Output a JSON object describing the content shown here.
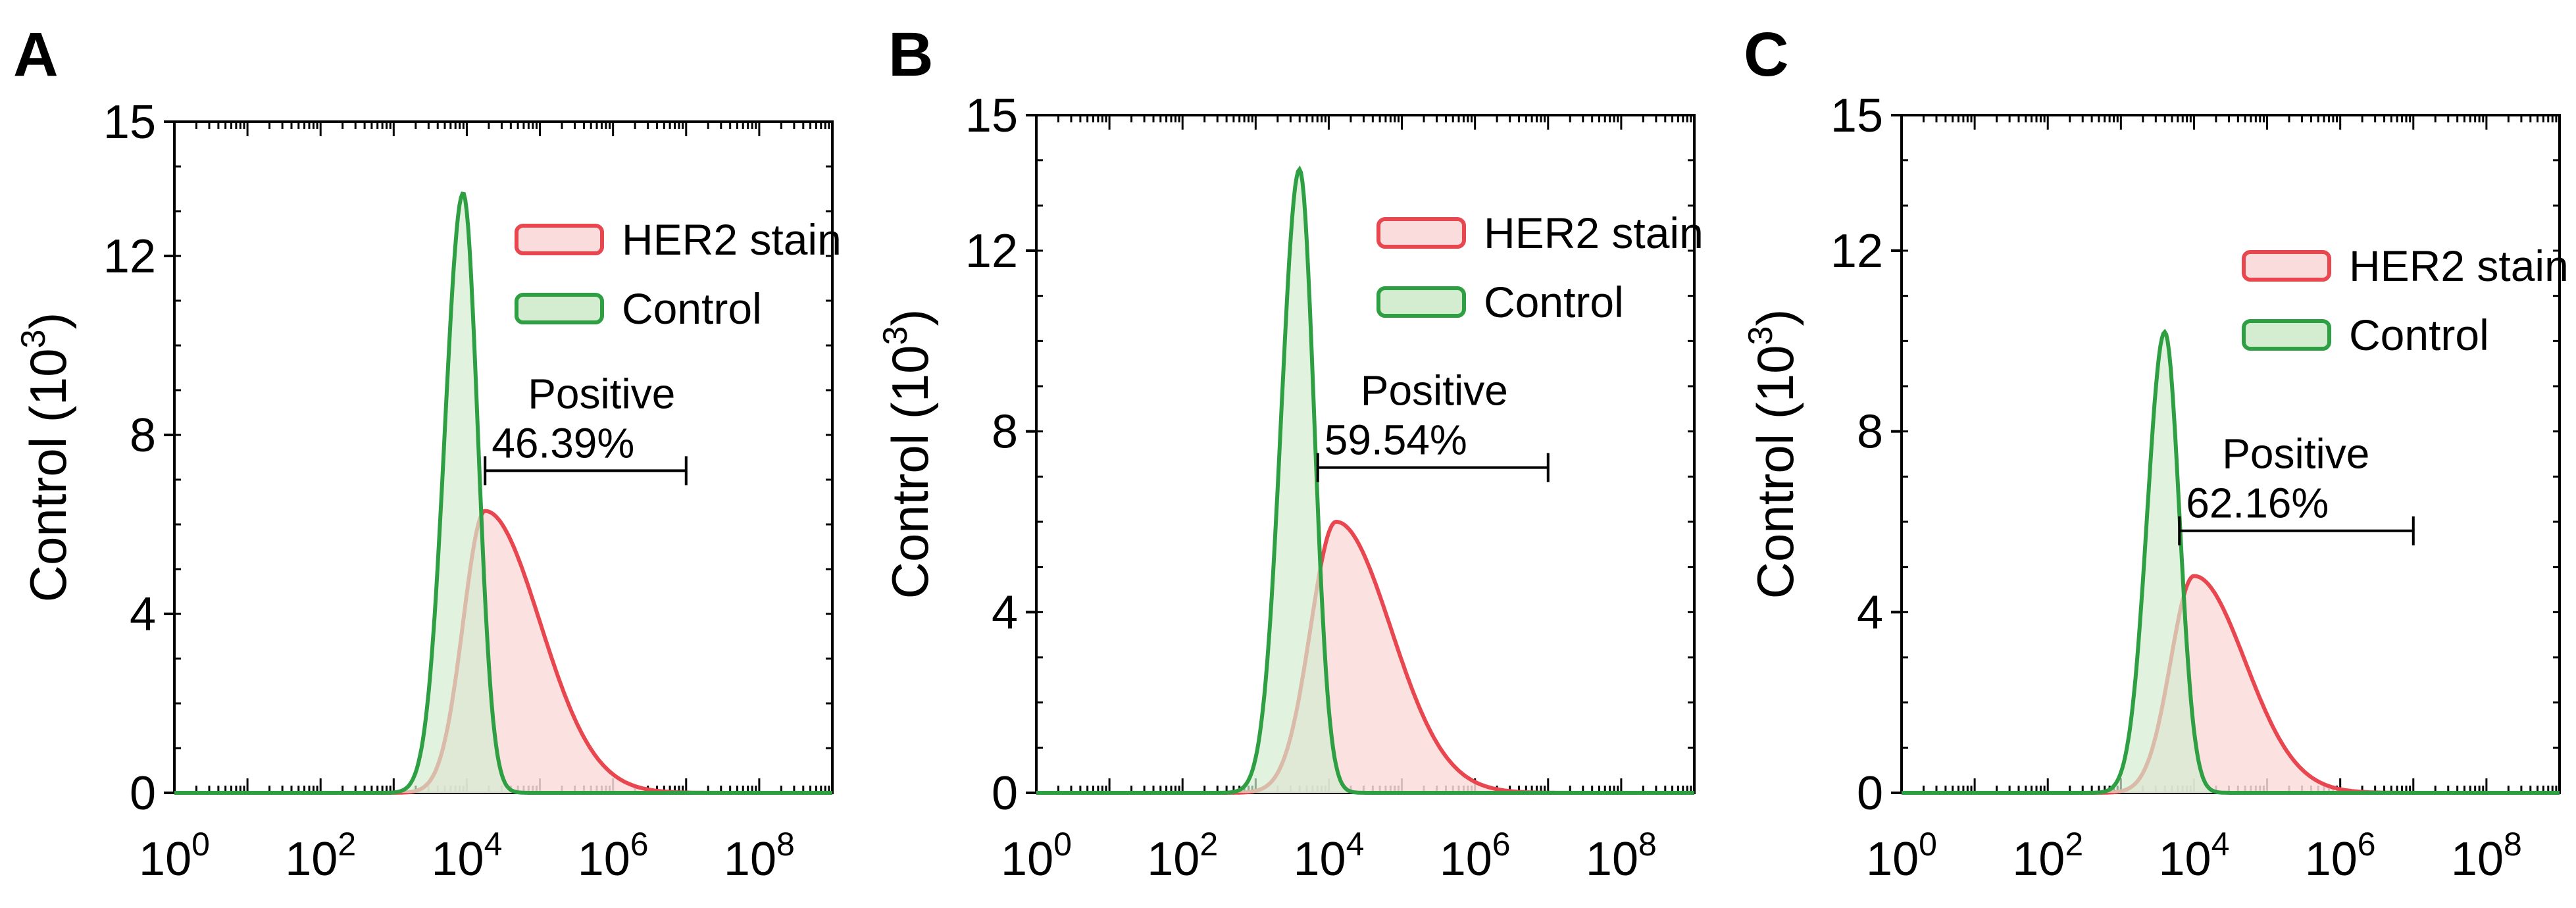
{
  "chart_data": [
    {
      "type": "histogram",
      "panel": "A",
      "ylabel": "Control (10",
      "ylabel_sup": "3",
      "ylabel_close": ")",
      "xlabel": "",
      "xscale": "log10",
      "xlim": [
        0,
        9
      ],
      "ylim": [
        0,
        15
      ],
      "x_ticks": [
        {
          "base": "10",
          "exp": "0",
          "value": 0
        },
        {
          "base": "10",
          "exp": "2",
          "value": 2
        },
        {
          "base": "10",
          "exp": "4",
          "value": 4
        },
        {
          "base": "10",
          "exp": "6",
          "value": 6
        },
        {
          "base": "10",
          "exp": "8",
          "value": 8
        }
      ],
      "y_ticks": [
        {
          "label": "0",
          "value": 0
        },
        {
          "label": "4",
          "value": 4
        },
        {
          "label": "8",
          "value": 8
        },
        {
          "label": "12",
          "value": 12
        },
        {
          "label": "15",
          "value": 15
        }
      ],
      "legend_position": "top-right",
      "series": [
        {
          "name": "HER2 stain",
          "color": "#e8474f",
          "fill": "#fbdcdc",
          "peak_log10": 4.25,
          "peak_count": 6.3,
          "sigma_left": 0.3,
          "sigma_right": 0.75
        },
        {
          "name": "Control",
          "color": "#2ea043",
          "fill": "#d4ecd0",
          "peak_log10": 3.95,
          "peak_count": 13.4,
          "sigma_left": 0.25,
          "sigma_right": 0.2
        }
      ],
      "gate": {
        "label": "Positive",
        "value_text": "46.39%",
        "x_start": 4.25,
        "x_end": 7.0,
        "y": 7.2
      }
    },
    {
      "type": "histogram",
      "panel": "B",
      "ylabel": "Control (10",
      "ylabel_sup": "3",
      "ylabel_close": ")",
      "xlabel": "",
      "xscale": "log10",
      "xlim": [
        0,
        9
      ],
      "ylim": [
        0,
        15
      ],
      "x_ticks": [
        {
          "base": "10",
          "exp": "0",
          "value": 0
        },
        {
          "base": "10",
          "exp": "2",
          "value": 2
        },
        {
          "base": "10",
          "exp": "4",
          "value": 4
        },
        {
          "base": "10",
          "exp": "6",
          "value": 6
        },
        {
          "base": "10",
          "exp": "8",
          "value": 8
        }
      ],
      "y_ticks": [
        {
          "label": "0",
          "value": 0
        },
        {
          "label": "4",
          "value": 4
        },
        {
          "label": "8",
          "value": 8
        },
        {
          "label": "12",
          "value": 12
        },
        {
          "label": "15",
          "value": 15
        }
      ],
      "legend_position": "top-right",
      "series": [
        {
          "name": "HER2 stain",
          "color": "#e8474f",
          "fill": "#fbdcdc",
          "peak_log10": 4.1,
          "peak_count": 6.0,
          "sigma_left": 0.35,
          "sigma_right": 0.75
        },
        {
          "name": "Control",
          "color": "#2ea043",
          "fill": "#d4ecd0",
          "peak_log10": 3.6,
          "peak_count": 13.8,
          "sigma_left": 0.25,
          "sigma_right": 0.2
        }
      ],
      "gate": {
        "label": "Positive",
        "value_text": "59.54%",
        "x_start": 3.85,
        "x_end": 7.0,
        "y": 7.2
      }
    },
    {
      "type": "histogram",
      "panel": "C",
      "ylabel": "Control (10",
      "ylabel_sup": "3",
      "ylabel_close": ")",
      "xlabel": "",
      "xscale": "log10",
      "xlim": [
        0,
        9
      ],
      "ylim": [
        0,
        15
      ],
      "x_ticks": [
        {
          "base": "10",
          "exp": "0",
          "value": 0
        },
        {
          "base": "10",
          "exp": "2",
          "value": 2
        },
        {
          "base": "10",
          "exp": "4",
          "value": 4
        },
        {
          "base": "10",
          "exp": "6",
          "value": 6
        },
        {
          "base": "10",
          "exp": "8",
          "value": 8
        }
      ],
      "y_ticks": [
        {
          "label": "0",
          "value": 0
        },
        {
          "label": "4",
          "value": 4
        },
        {
          "label": "8",
          "value": 8
        },
        {
          "label": "12",
          "value": 12
        },
        {
          "label": "15",
          "value": 15
        }
      ],
      "legend_position": "top-right",
      "series": [
        {
          "name": "HER2 stain",
          "color": "#e8474f",
          "fill": "#fbdcdc",
          "peak_log10": 4.0,
          "peak_count": 4.8,
          "sigma_left": 0.32,
          "sigma_right": 0.7
        },
        {
          "name": "Control",
          "color": "#2ea043",
          "fill": "#d4ecd0",
          "peak_log10": 3.6,
          "peak_count": 10.2,
          "sigma_left": 0.24,
          "sigma_right": 0.2
        }
      ],
      "gate": {
        "label": "Positive",
        "value_text": "62.16%",
        "x_start": 3.8,
        "x_end": 7.0,
        "y": 5.8
      }
    }
  ]
}
